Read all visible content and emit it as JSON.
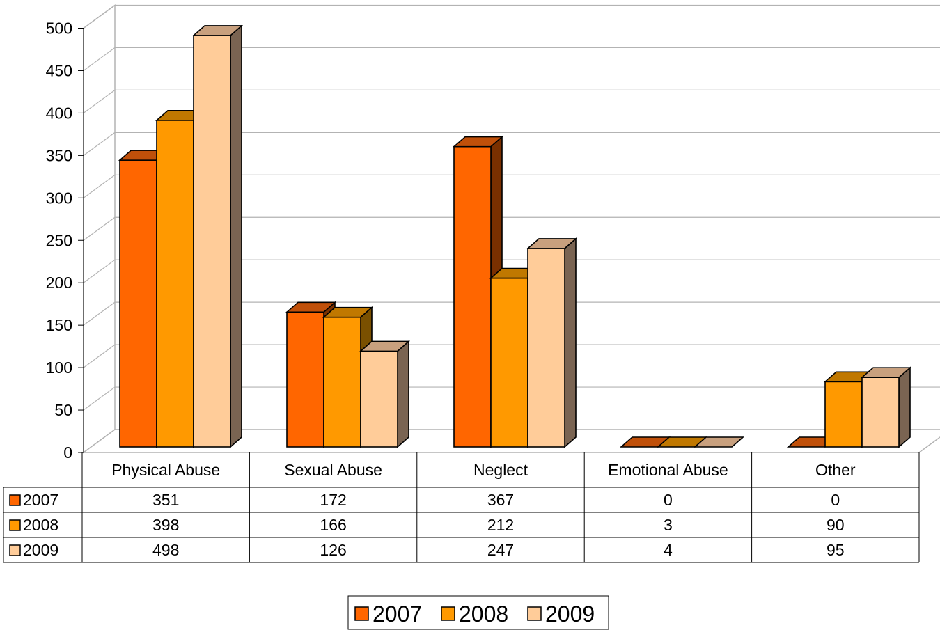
{
  "chart_data": {
    "type": "bar",
    "style": "3d-clustered-column-with-data-table",
    "categories": [
      "Physical Abuse",
      "Sexual Abuse",
      "Neglect",
      "Emotional Abuse",
      "Other"
    ],
    "series": [
      {
        "name": "2007",
        "values": [
          351,
          172,
          367,
          0,
          0
        ],
        "color": "#FF6600",
        "top_color": "#C0500A",
        "side_color": "#7A3000"
      },
      {
        "name": "2008",
        "values": [
          398,
          166,
          212,
          3,
          90
        ],
        "color": "#FF9900",
        "top_color": "#C07800",
        "side_color": "#7A5000"
      },
      {
        "name": "2009",
        "values": [
          498,
          126,
          247,
          4,
          95
        ],
        "color": "#FFCC99",
        "top_color": "#C8A07E",
        "side_color": "#7A6452"
      }
    ],
    "ylim": [
      0,
      500
    ],
    "yticks": [
      "0",
      "50",
      "100",
      "150",
      "200",
      "250",
      "300",
      "350",
      "400",
      "450",
      "500"
    ],
    "grid": true,
    "legend": {
      "position": "bottom",
      "labels": [
        "2007",
        "2008",
        "2009"
      ]
    }
  }
}
